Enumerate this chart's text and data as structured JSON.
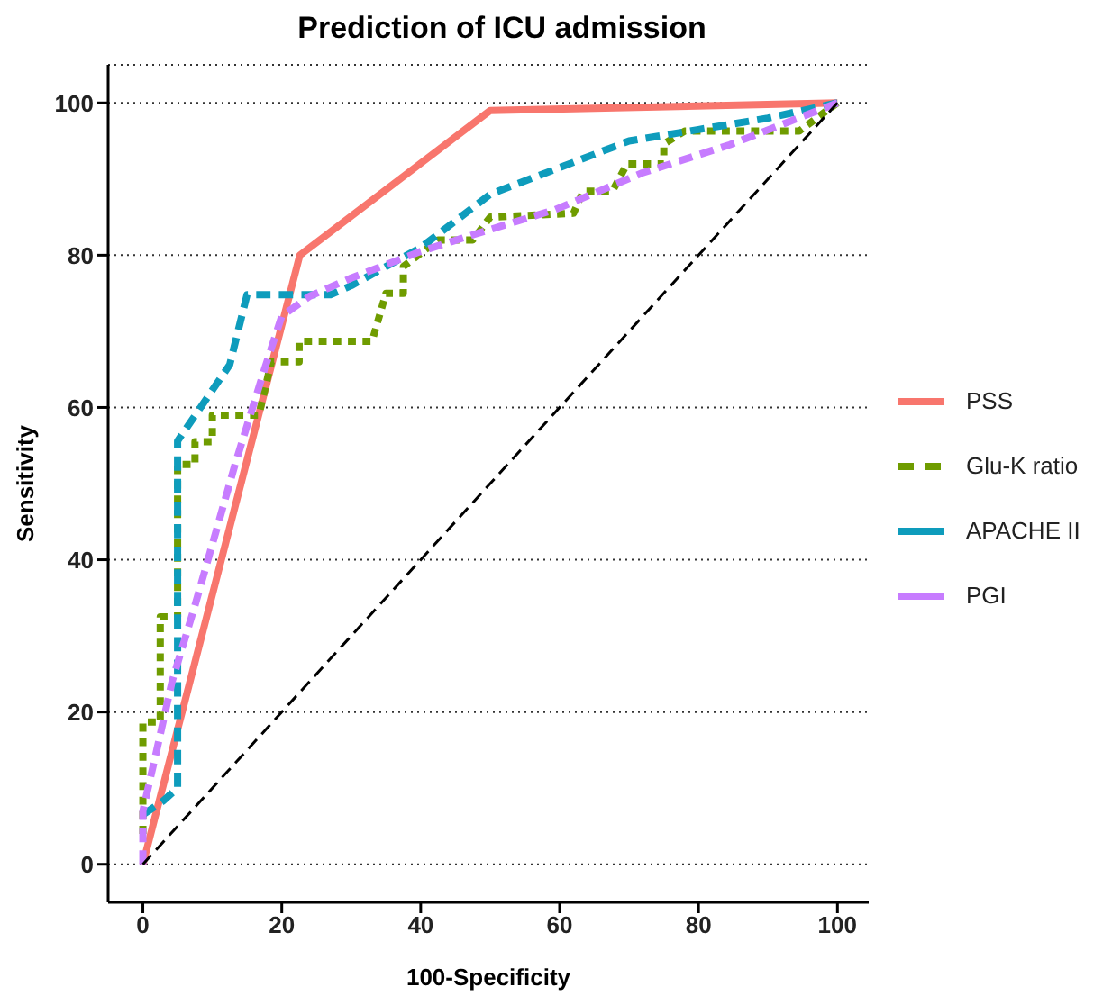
{
  "chart_data": {
    "type": "line",
    "title": "Prediction of ICU admission",
    "xlabel": "100-Specificity",
    "ylabel": "Sensitivity",
    "xlim": [
      -5,
      104.5
    ],
    "ylim": [
      -5,
      105
    ],
    "xticks": [
      0,
      20,
      40,
      60,
      80,
      100
    ],
    "yticks": [
      0,
      20,
      40,
      60,
      80,
      100
    ],
    "grid": "y",
    "legend": "right",
    "marker": "none",
    "series": [
      {
        "name": "PSS",
        "color": "#f8766d",
        "line_style": "solid",
        "x": [
          0,
          22.6,
          50,
          100
        ],
        "values": [
          0,
          80,
          99,
          100
        ]
      },
      {
        "name": "Glu-K ratio",
        "color": "#6f9c00",
        "line_style": "dotted",
        "x": [
          0,
          0,
          2.5,
          2.5,
          5,
          5,
          7.5,
          7.5,
          10,
          10,
          16.7,
          18.5,
          22.5,
          22.5,
          33,
          35,
          37.5,
          37.5,
          42.5,
          47.5,
          50,
          62,
          63.4,
          67.6,
          69.7,
          75,
          75,
          78,
          94.5,
          97,
          100
        ],
        "values": [
          4,
          18.7,
          18.7,
          32.5,
          32.5,
          52.5,
          52.5,
          55.5,
          55.5,
          59,
          59,
          66,
          66,
          68.7,
          68.7,
          75,
          75,
          78.5,
          82,
          82,
          85,
          85.5,
          88.4,
          88.4,
          92,
          92,
          94.6,
          96.3,
          96.3,
          98,
          100
        ]
      },
      {
        "name": "APACHE II",
        "color": "#0e9cbc",
        "line_style": "dashed",
        "x": [
          0,
          2.9,
          5,
          5,
          8.3,
          12.5,
          15,
          27,
          30,
          40,
          50,
          60,
          70,
          80,
          90,
          100
        ],
        "values": [
          6.5,
          8.3,
          10,
          55.6,
          60,
          65.6,
          74.8,
          74.8,
          76,
          81,
          88,
          91.5,
          95,
          96.5,
          98,
          100
        ]
      },
      {
        "name": "PGI",
        "color": "#c77cff",
        "line_style": "dashed",
        "x": [
          0,
          0,
          2,
          4.2,
          7.5,
          13.3,
          17.5,
          20,
          24,
          30,
          40,
          47.6,
          59.4,
          71.9,
          84.5,
          100
        ],
        "values": [
          0,
          7,
          15,
          24,
          34,
          52.6,
          65,
          72,
          74.6,
          77,
          80.5,
          82.7,
          86,
          90.8,
          94.5,
          100
        ]
      },
      {
        "color": "#000000",
        "line_style": "dashed",
        "x": [
          0,
          100
        ],
        "values": [
          0,
          100
        ]
      }
    ]
  }
}
